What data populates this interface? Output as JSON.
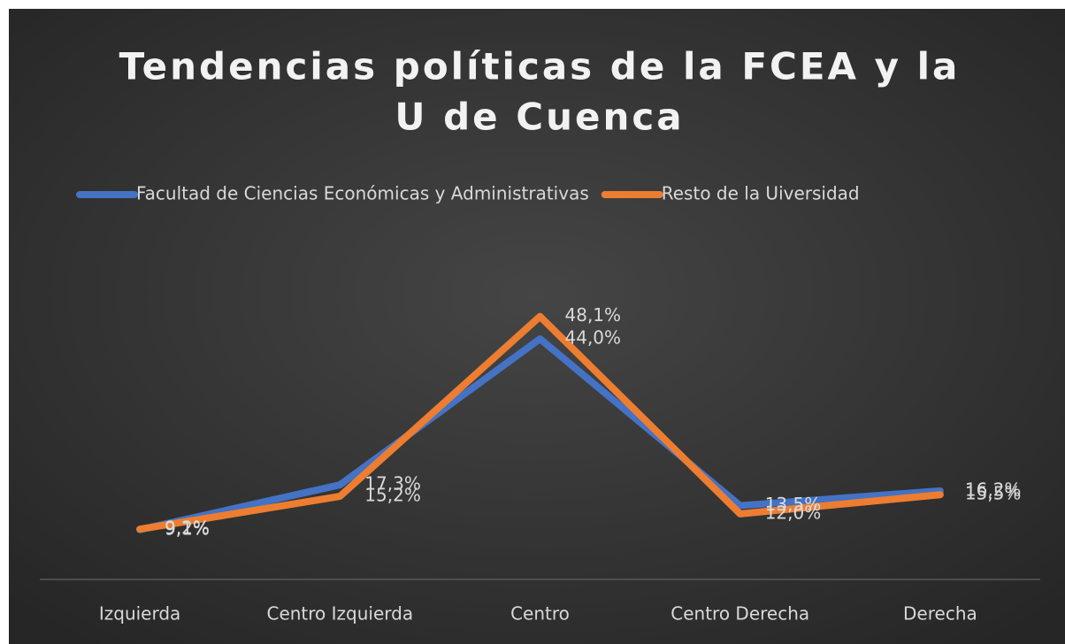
{
  "chart_data": {
    "type": "line",
    "title": [
      "Tendencias políticas de la FCEA y la",
      "U de Cuenca"
    ],
    "categories": [
      "Izquierda",
      "Centro Izquierda",
      "Centro",
      "Centro Derecha",
      "Derecha"
    ],
    "series": [
      {
        "name": "Facultad de Ciencias Económicas y Administrativas",
        "color": "#4472c4",
        "values": [
          9.1,
          17.3,
          44.0,
          13.5,
          16.2
        ],
        "value_labels": [
          "9,1%",
          "17,3%",
          "44,0%",
          "13,5%",
          "16,2%"
        ]
      },
      {
        "name": "Resto de la Uiversidad",
        "color": "#ed7d31",
        "values": [
          9.2,
          15.2,
          48.1,
          12.0,
          15.5
        ],
        "value_labels": [
          "9,2%",
          "15,2%",
          "48,1%",
          "12,0%",
          "15,5%"
        ]
      }
    ],
    "ylim": [
      0,
      50
    ],
    "legend": "top"
  }
}
